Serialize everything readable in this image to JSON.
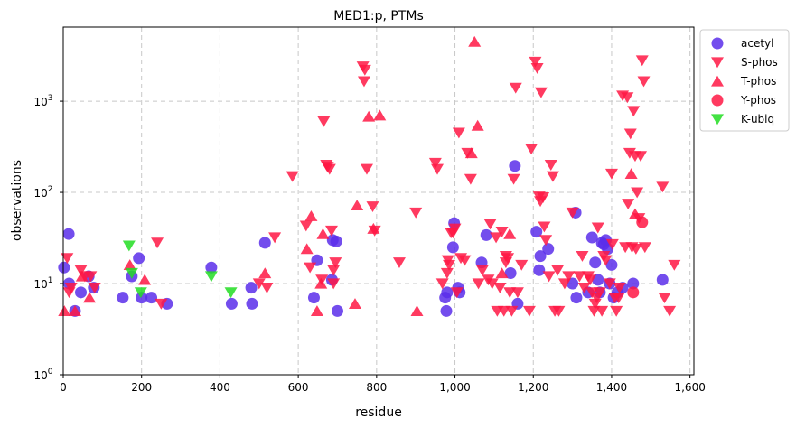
{
  "chart_data": {
    "type": "scatter",
    "title": "MED1:p, PTMs",
    "xlabel": "residue",
    "ylabel": "observations",
    "xlim": [
      0,
      1610
    ],
    "ylim": [
      1,
      6500
    ],
    "yscale": "log",
    "x_ticks": [
      0,
      200,
      400,
      600,
      800,
      1000,
      1200,
      1400,
      1600
    ],
    "x_tick_labels": [
      "0",
      "200",
      "400",
      "600",
      "800",
      "1,000",
      "1,200",
      "1,400",
      "1,600"
    ],
    "y_ticks": [
      1,
      10,
      100,
      1000
    ],
    "y_tick_base": "10",
    "y_tick_exponents": [
      "0",
      "1",
      "2",
      "3"
    ],
    "grid": true,
    "legend_position": "outside-right-top",
    "series": [
      {
        "name": "acetyl",
        "marker": "circle",
        "color": "#5B2EEA",
        "points": [
          [
            2,
            15
          ],
          [
            14,
            35
          ],
          [
            15,
            10
          ],
          [
            30,
            5
          ],
          [
            45,
            8
          ],
          [
            65,
            12
          ],
          [
            78,
            9
          ],
          [
            152,
            7
          ],
          [
            175,
            12
          ],
          [
            193,
            19
          ],
          [
            200,
            7
          ],
          [
            225,
            7
          ],
          [
            265,
            6
          ],
          [
            378,
            15
          ],
          [
            430,
            6
          ],
          [
            480,
            9
          ],
          [
            482,
            6
          ],
          [
            515,
            28
          ],
          [
            640,
            7
          ],
          [
            648,
            18
          ],
          [
            686,
            11
          ],
          [
            688,
            30
          ],
          [
            697,
            29
          ],
          [
            700,
            5
          ],
          [
            975,
            7
          ],
          [
            978,
            5
          ],
          [
            980,
            8
          ],
          [
            995,
            25
          ],
          [
            998,
            46
          ],
          [
            1008,
            9
          ],
          [
            1012,
            8
          ],
          [
            1068,
            17
          ],
          [
            1080,
            34
          ],
          [
            1142,
            13
          ],
          [
            1153,
            195
          ],
          [
            1160,
            6
          ],
          [
            1208,
            37
          ],
          [
            1215,
            14
          ],
          [
            1218,
            20
          ],
          [
            1238,
            24
          ],
          [
            1300,
            10
          ],
          [
            1308,
            60
          ],
          [
            1310,
            7
          ],
          [
            1340,
            8
          ],
          [
            1350,
            32
          ],
          [
            1358,
            17
          ],
          [
            1365,
            11
          ],
          [
            1370,
            8
          ],
          [
            1375,
            28
          ],
          [
            1380,
            27
          ],
          [
            1385,
            30
          ],
          [
            1390,
            24
          ],
          [
            1395,
            10
          ],
          [
            1400,
            16
          ],
          [
            1405,
            7
          ],
          [
            1415,
            8
          ],
          [
            1428,
            9
          ],
          [
            1455,
            10
          ],
          [
            1530,
            11
          ]
        ]
      },
      {
        "name": "S-phos",
        "marker": "triangle-down",
        "color": "#FF1744",
        "points": [
          [
            10,
            19
          ],
          [
            15,
            8
          ],
          [
            20,
            9
          ],
          [
            45,
            14
          ],
          [
            55,
            12
          ],
          [
            70,
            12
          ],
          [
            80,
            9
          ],
          [
            240,
            28
          ],
          [
            250,
            6
          ],
          [
            500,
            10
          ],
          [
            520,
            9
          ],
          [
            540,
            32
          ],
          [
            585,
            150
          ],
          [
            620,
            43
          ],
          [
            630,
            15
          ],
          [
            660,
            11
          ],
          [
            665,
            600
          ],
          [
            672,
            200
          ],
          [
            675,
            190
          ],
          [
            680,
            180
          ],
          [
            685,
            38
          ],
          [
            690,
            14
          ],
          [
            690,
            10
          ],
          [
            695,
            17
          ],
          [
            765,
            2400
          ],
          [
            768,
            1650
          ],
          [
            770,
            2200
          ],
          [
            775,
            180
          ],
          [
            790,
            70
          ],
          [
            795,
            38
          ],
          [
            858,
            17
          ],
          [
            900,
            60
          ],
          [
            950,
            210
          ],
          [
            955,
            180
          ],
          [
            968,
            10
          ],
          [
            980,
            13
          ],
          [
            982,
            18
          ],
          [
            985,
            16
          ],
          [
            990,
            36
          ],
          [
            995,
            36
          ],
          [
            1000,
            40
          ],
          [
            1005,
            8
          ],
          [
            1010,
            450
          ],
          [
            1015,
            19
          ],
          [
            1025,
            18
          ],
          [
            1032,
            270
          ],
          [
            1040,
            140
          ],
          [
            1060,
            10
          ],
          [
            1070,
            14
          ],
          [
            1085,
            11
          ],
          [
            1090,
            45
          ],
          [
            1095,
            10
          ],
          [
            1105,
            32
          ],
          [
            1108,
            5
          ],
          [
            1115,
            9
          ],
          [
            1120,
            37
          ],
          [
            1125,
            5
          ],
          [
            1130,
            20
          ],
          [
            1130,
            17
          ],
          [
            1135,
            19
          ],
          [
            1140,
            8
          ],
          [
            1145,
            5
          ],
          [
            1150,
            140
          ],
          [
            1155,
            1400
          ],
          [
            1160,
            8
          ],
          [
            1170,
            16
          ],
          [
            1190,
            5
          ],
          [
            1195,
            300
          ],
          [
            1205,
            2700
          ],
          [
            1210,
            2300
          ],
          [
            1215,
            90
          ],
          [
            1218,
            80
          ],
          [
            1220,
            1250
          ],
          [
            1225,
            88
          ],
          [
            1228,
            42
          ],
          [
            1232,
            30
          ],
          [
            1240,
            12
          ],
          [
            1245,
            200
          ],
          [
            1250,
            150
          ],
          [
            1255,
            5
          ],
          [
            1262,
            14
          ],
          [
            1265,
            5
          ],
          [
            1280,
            10
          ],
          [
            1290,
            12
          ],
          [
            1300,
            60
          ],
          [
            1318,
            12
          ],
          [
            1325,
            20
          ],
          [
            1330,
            9
          ],
          [
            1340,
            12
          ],
          [
            1345,
            11
          ],
          [
            1350,
            8
          ],
          [
            1355,
            5
          ],
          [
            1358,
            6
          ],
          [
            1362,
            7
          ],
          [
            1365,
            41
          ],
          [
            1370,
            8
          ],
          [
            1375,
            5
          ],
          [
            1380,
            20
          ],
          [
            1385,
            18
          ],
          [
            1395,
            10
          ],
          [
            1400,
            160
          ],
          [
            1402,
            27
          ],
          [
            1408,
            7
          ],
          [
            1412,
            5
          ],
          [
            1418,
            7
          ],
          [
            1420,
            9
          ],
          [
            1428,
            1150
          ],
          [
            1435,
            25
          ],
          [
            1440,
            1100
          ],
          [
            1442,
            75
          ],
          [
            1446,
            270
          ],
          [
            1448,
            440
          ],
          [
            1452,
            25
          ],
          [
            1456,
            780
          ],
          [
            1460,
            250
          ],
          [
            1462,
            24
          ],
          [
            1465,
            100
          ],
          [
            1470,
            52
          ],
          [
            1474,
            250
          ],
          [
            1478,
            2800
          ],
          [
            1482,
            1650
          ],
          [
            1485,
            25
          ],
          [
            1530,
            115
          ],
          [
            1535,
            7
          ],
          [
            1548,
            5
          ],
          [
            1560,
            16
          ]
        ]
      },
      {
        "name": "T-phos",
        "marker": "triangle-up",
        "color": "#FF1744",
        "points": [
          [
            3,
            5
          ],
          [
            30,
            5
          ],
          [
            48,
            12
          ],
          [
            67,
            7
          ],
          [
            170,
            16
          ],
          [
            208,
            11
          ],
          [
            515,
            13
          ],
          [
            622,
            24
          ],
          [
            633,
            55
          ],
          [
            648,
            5
          ],
          [
            658,
            10
          ],
          [
            663,
            35
          ],
          [
            745,
            6
          ],
          [
            750,
            72
          ],
          [
            780,
            680
          ],
          [
            792,
            40
          ],
          [
            808,
            700
          ],
          [
            903,
            5
          ],
          [
            1042,
            270
          ],
          [
            1050,
            4500
          ],
          [
            1058,
            540
          ],
          [
            1120,
            13
          ],
          [
            1140,
            35
          ],
          [
            1450,
            160
          ],
          [
            1460,
            58
          ]
        ]
      },
      {
        "name": "Y-phos",
        "marker": "circle",
        "color": "#FF1744",
        "points": [
          [
            1455,
            8
          ],
          [
            1478,
            47
          ]
        ]
      },
      {
        "name": "K-ubiq",
        "marker": "triangle-down",
        "color": "#22DD22",
        "points": [
          [
            168,
            26
          ],
          [
            175,
            13
          ],
          [
            198,
            8
          ],
          [
            378,
            12
          ],
          [
            428,
            8
          ]
        ]
      }
    ]
  }
}
